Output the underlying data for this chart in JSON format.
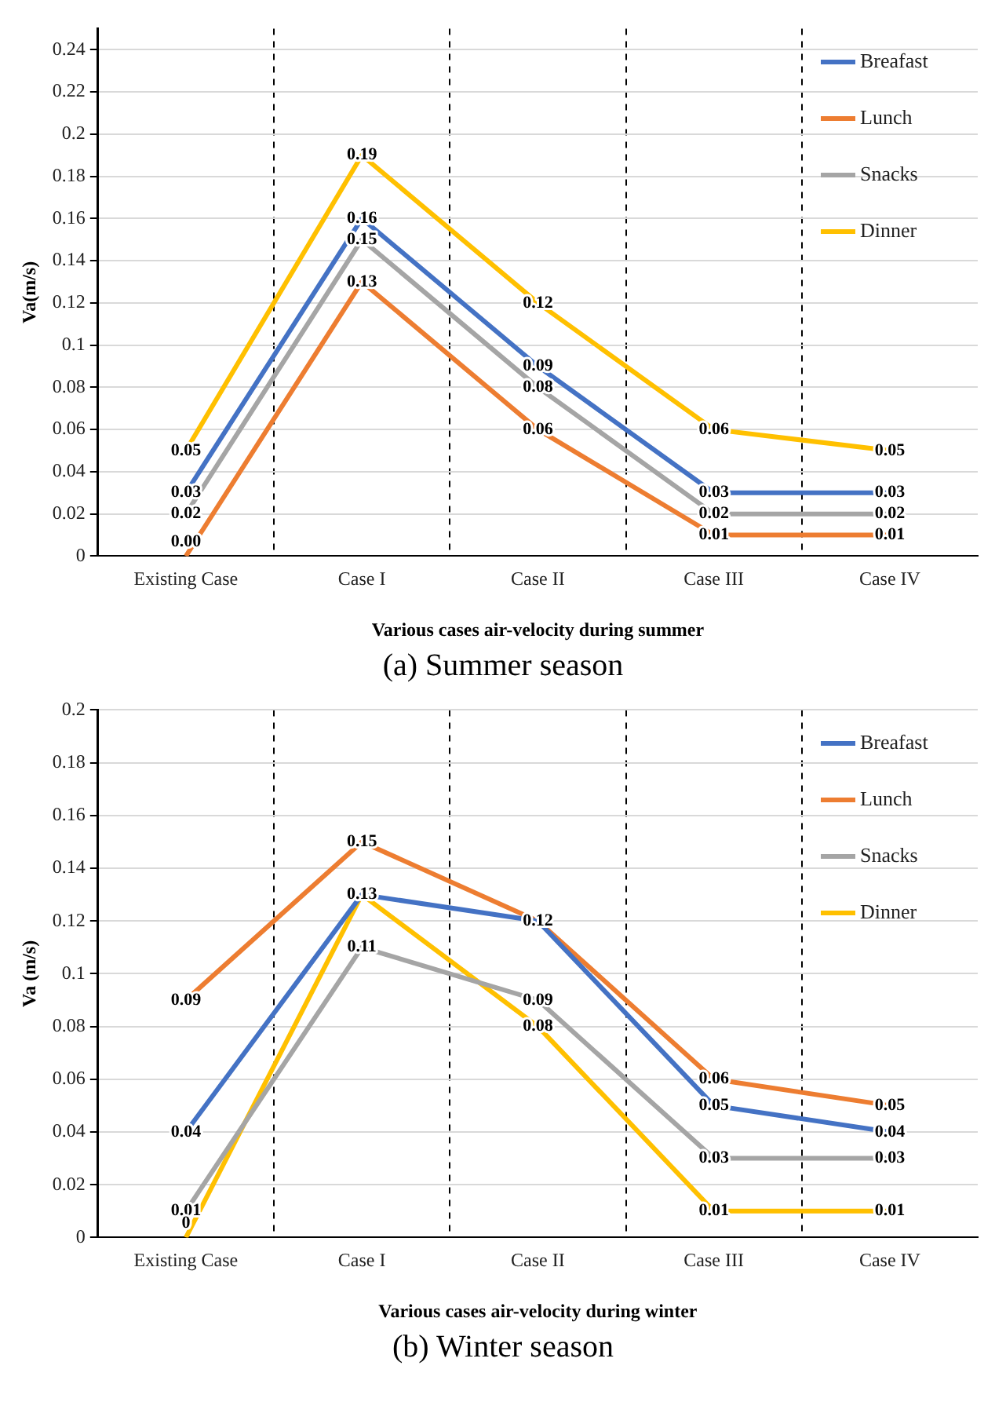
{
  "chart_data": [
    {
      "type": "line",
      "xlabel": "Various cases air-velocity during summer",
      "ylabel": "Va(m/s)",
      "annotations": [
        "(a) Summer season"
      ],
      "categories": [
        "Existing Case",
        "Case I",
        "Case II",
        "Case III",
        "Case IV"
      ],
      "series": [
        {
          "name": "Breafast",
          "color": "#4472c4",
          "values": [
            0.03,
            0.16,
            0.09,
            0.03,
            0.03
          ],
          "value_labels": [
            "0.03",
            "0.16",
            "0.09",
            "0.03",
            "0.03"
          ]
        },
        {
          "name": "Lunch",
          "color": "#ed7d31",
          "values": [
            0.0,
            0.13,
            0.06,
            0.01,
            0.01
          ],
          "value_labels": [
            "0.00",
            "0.13",
            "0.06",
            "0.01",
            "0.01"
          ]
        },
        {
          "name": "Snacks",
          "color": "#a5a5a5",
          "values": [
            0.02,
            0.15,
            0.08,
            0.02,
            0.02
          ],
          "value_labels": [
            "0.02",
            "0.15",
            "0.08",
            "0.02",
            "0.02"
          ]
        },
        {
          "name": "Dinner",
          "color": "#ffc000",
          "values": [
            0.05,
            0.19,
            0.12,
            0.06,
            0.05
          ],
          "value_labels": [
            "0.05",
            "0.19",
            "0.12",
            "0.06",
            "0.05"
          ]
        }
      ],
      "ylim": [
        0,
        0.25
      ],
      "yticks": [
        0,
        0.02,
        0.04,
        0.06,
        0.08,
        0.1,
        0.12,
        0.14,
        0.16,
        0.18,
        0.2,
        0.22,
        0.24
      ],
      "grid": true,
      "legend": "top right",
      "marker": "none",
      "line_style": "solid"
    },
    {
      "type": "line",
      "xlabel": "Various cases air-velocity during winter",
      "ylabel": "Va (m/s)",
      "annotations": [
        "(b) Winter season"
      ],
      "categories": [
        "Existing Case",
        "Case I",
        "Case II",
        "Case III",
        "Case IV"
      ],
      "series": [
        {
          "name": "Breafast",
          "color": "#4472c4",
          "values": [
            0.04,
            0.13,
            0.12,
            0.05,
            0.04
          ],
          "value_labels": [
            "0.04",
            "0.13",
            null,
            "0.05",
            "0.04"
          ]
        },
        {
          "name": "Lunch",
          "color": "#ed7d31",
          "values": [
            0.09,
            0.15,
            0.12,
            0.06,
            0.05
          ],
          "value_labels": [
            "0.09",
            "0.15",
            "0.12",
            "0.06",
            "0.05"
          ]
        },
        {
          "name": "Snacks",
          "color": "#a5a5a5",
          "values": [
            0.01,
            0.11,
            0.09,
            0.03,
            0.03
          ],
          "value_labels": [
            "0.01",
            "0.11",
            "0.09",
            "0.03",
            "0.03"
          ]
        },
        {
          "name": "Dinner",
          "color": "#ffc000",
          "values": [
            0,
            0.13,
            0.08,
            0.01,
            0.01
          ],
          "value_labels": [
            "0",
            null,
            "0.08",
            "0.01",
            "0.01"
          ]
        }
      ],
      "ylim": [
        0,
        0.2
      ],
      "yticks": [
        0,
        0.02,
        0.04,
        0.06,
        0.08,
        0.1,
        0.12,
        0.14,
        0.16,
        0.18,
        0.2
      ],
      "grid": true,
      "legend": "top right",
      "marker": "none",
      "line_style": "solid"
    }
  ]
}
